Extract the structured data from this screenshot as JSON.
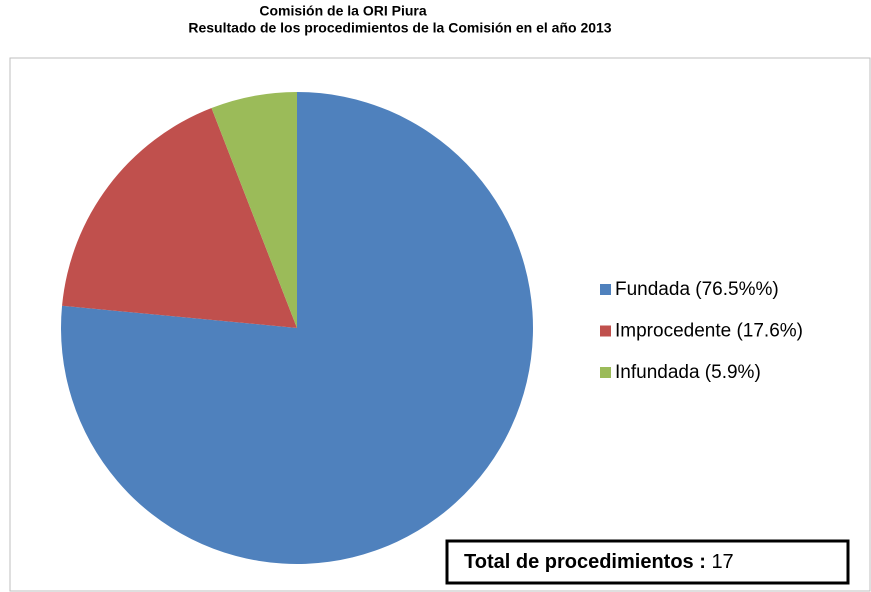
{
  "chart_data": {
    "type": "pie",
    "title": "Comisión de la ORI Piura",
    "subtitle": "Resultado de los procedimientos de la Comisión en el año 2013",
    "categories": [
      "Fundada (76.5%%)",
      "Improcedente (17.6%)",
      "Infundada (5.9%)"
    ],
    "values": [
      76.5,
      17.6,
      5.9
    ],
    "colors": [
      "#4f81bd",
      "#c0504d",
      "#9bbb59"
    ],
    "legend": "right",
    "annotation": {
      "label": "Total de procedimientos :",
      "value": 17
    }
  }
}
